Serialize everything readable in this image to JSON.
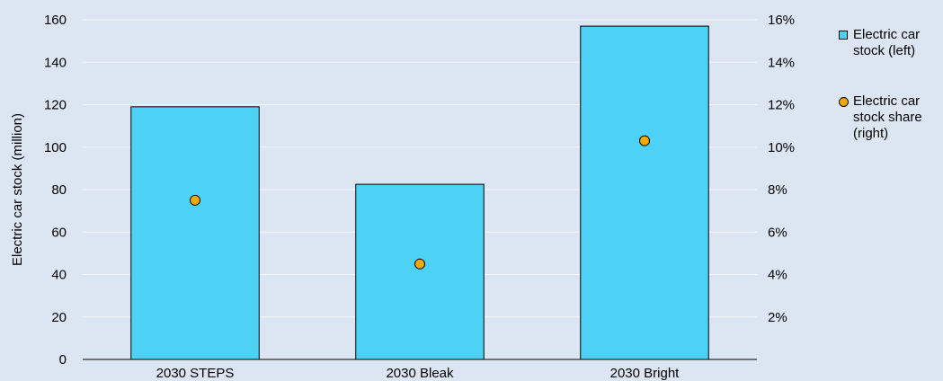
{
  "chart_data": {
    "type": "bar",
    "categories": [
      "2030 STEPS",
      "2030 Bleak",
      "2030 Bright"
    ],
    "series": [
      {
        "name": "Electric car stock (left)",
        "type": "bar",
        "axis": "left",
        "color": "#4dd2f5",
        "values": [
          119,
          82.5,
          157
        ]
      },
      {
        "name": "Electric car stock share (right)",
        "type": "scatter",
        "axis": "right",
        "color": "#f5a800",
        "values": [
          7.5,
          4.5,
          10.3
        ]
      }
    ],
    "ylabel": "Electric car stock (million)",
    "ylim": [
      0,
      160
    ],
    "yticks": [
      0,
      20,
      40,
      60,
      80,
      100,
      120,
      140,
      160
    ],
    "y2lim": [
      0,
      16
    ],
    "y2ticks": [
      "",
      "2%",
      "4%",
      "6%",
      "8%",
      "10%",
      "12%",
      "14%",
      "16%"
    ],
    "grid": true,
    "legend_position": "right"
  }
}
